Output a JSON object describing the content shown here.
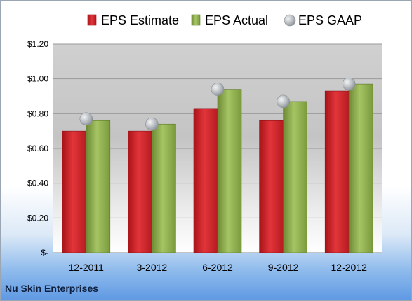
{
  "company": "Nu Skin Enterprises",
  "chart_data": {
    "type": "bar",
    "categories": [
      "12-2011",
      "3-2012",
      "6-2012",
      "9-2012",
      "12-2012"
    ],
    "series": [
      {
        "name": "EPS Estimate",
        "kind": "bar",
        "color": "#cc2a2f",
        "values": [
          0.7,
          0.7,
          0.83,
          0.76,
          0.93
        ]
      },
      {
        "name": "EPS Actual",
        "kind": "bar",
        "color": "#8cad4b",
        "values": [
          0.76,
          0.74,
          0.94,
          0.87,
          0.97
        ]
      },
      {
        "name": "EPS GAAP",
        "kind": "marker",
        "color": "#b5b9be",
        "values": [
          0.77,
          0.74,
          0.94,
          0.87,
          0.97
        ]
      }
    ],
    "ylim": [
      0,
      1.2
    ],
    "yticks": [
      0,
      0.2,
      0.4,
      0.6,
      0.8,
      1.0,
      1.2
    ],
    "ytick_labels": [
      "$-",
      "$0.20",
      "$0.40",
      "$0.60",
      "$0.80",
      "$1.00",
      "$1.20"
    ],
    "legend_position": "top",
    "grid": true
  }
}
